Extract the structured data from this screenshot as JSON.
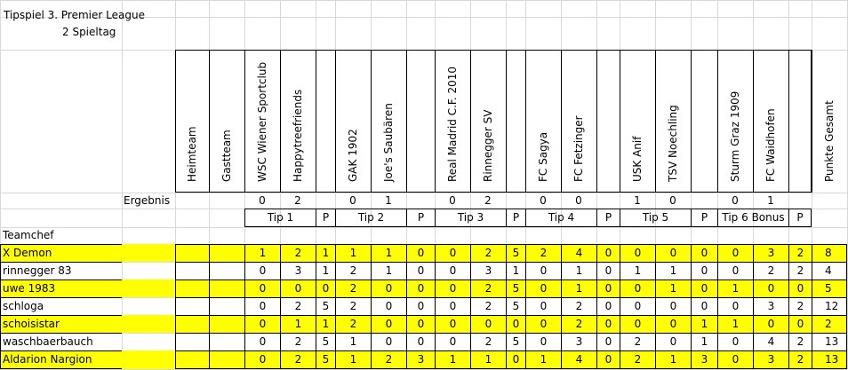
{
  "title_line1": "Tipspiel 3. Premier League",
  "title_line2": "2 Spieltag",
  "ergebnis_label": "Ergebnis",
  "teamchef_label": "Teamchef",
  "column_headers": [
    "Heimteam",
    "Gastteam",
    "WSC Wiener Sportclub",
    "Happytreefriends",
    "",
    "GAK 1902",
    "Joe's Saubären",
    "",
    "Real Madrid C.F. 2010",
    "Rinnegger SV",
    "",
    "FC Sagya",
    "FC Fetzinger",
    "",
    "USK Anif",
    "TSV Noechling",
    "",
    "Sturm Graz 1909",
    "FC Waidhofen",
    "",
    "Punkte Gesamt"
  ],
  "ergebnis": [
    "0",
    "2",
    "",
    "0",
    "1",
    "",
    "0",
    "2",
    "",
    "0",
    "0",
    "",
    "1",
    "0",
    "",
    "0",
    "1",
    "",
    ""
  ],
  "tip_headers": [
    "Tip 1",
    "P",
    "Tip 2",
    "P",
    "Tip 3",
    "P",
    "Tip 4",
    "P",
    "Tip 5",
    "P",
    "Tip 6 Bonus",
    "P"
  ],
  "rows": [
    {
      "name": "X Demon",
      "highlight": true,
      "values": [
        "1",
        "2",
        "1",
        "1",
        "1",
        "0",
        "0",
        "2",
        "5",
        "2",
        "4",
        "0",
        "0",
        "0",
        "0",
        "0",
        "3",
        "2",
        "8"
      ]
    },
    {
      "name": "rinnegger 83",
      "highlight": false,
      "values": [
        "0",
        "3",
        "1",
        "2",
        "1",
        "0",
        "0",
        "3",
        "1",
        "0",
        "1",
        "0",
        "1",
        "1",
        "0",
        "0",
        "2",
        "2",
        "4"
      ]
    },
    {
      "name": "uwe 1983",
      "highlight": true,
      "values": [
        "0",
        "0",
        "0",
        "2",
        "0",
        "0",
        "0",
        "2",
        "5",
        "0",
        "1",
        "0",
        "0",
        "1",
        "0",
        "1",
        "0",
        "0",
        "5"
      ]
    },
    {
      "name": "schloga",
      "highlight": false,
      "values": [
        "0",
        "2",
        "5",
        "2",
        "0",
        "0",
        "0",
        "2",
        "5",
        "0",
        "2",
        "0",
        "0",
        "0",
        "0",
        "0",
        "3",
        "2",
        "12"
      ]
    },
    {
      "name": "schoisistar",
      "highlight": true,
      "values": [
        "0",
        "1",
        "1",
        "2",
        "0",
        "0",
        "0",
        "0",
        "0",
        "0",
        "2",
        "0",
        "0",
        "0",
        "1",
        "1",
        "0",
        "0",
        "2"
      ]
    },
    {
      "name": "waschbaerbauch",
      "highlight": false,
      "values": [
        "0",
        "2",
        "5",
        "1",
        "0",
        "0",
        "0",
        "2",
        "5",
        "0",
        "3",
        "0",
        "2",
        "0",
        "1",
        "0",
        "4",
        "2",
        "13"
      ]
    },
    {
      "name": "Aldarion Nargion",
      "highlight": true,
      "values": [
        "0",
        "2",
        "5",
        "1",
        "2",
        "3",
        "1",
        "1",
        "0",
        "1",
        "4",
        "0",
        "2",
        "1",
        "3",
        "0",
        "3",
        "2",
        "13"
      ]
    }
  ],
  "colors": {
    "highlight": "#ffff00",
    "gridline": "#d9d9d9",
    "border": "#000000"
  }
}
